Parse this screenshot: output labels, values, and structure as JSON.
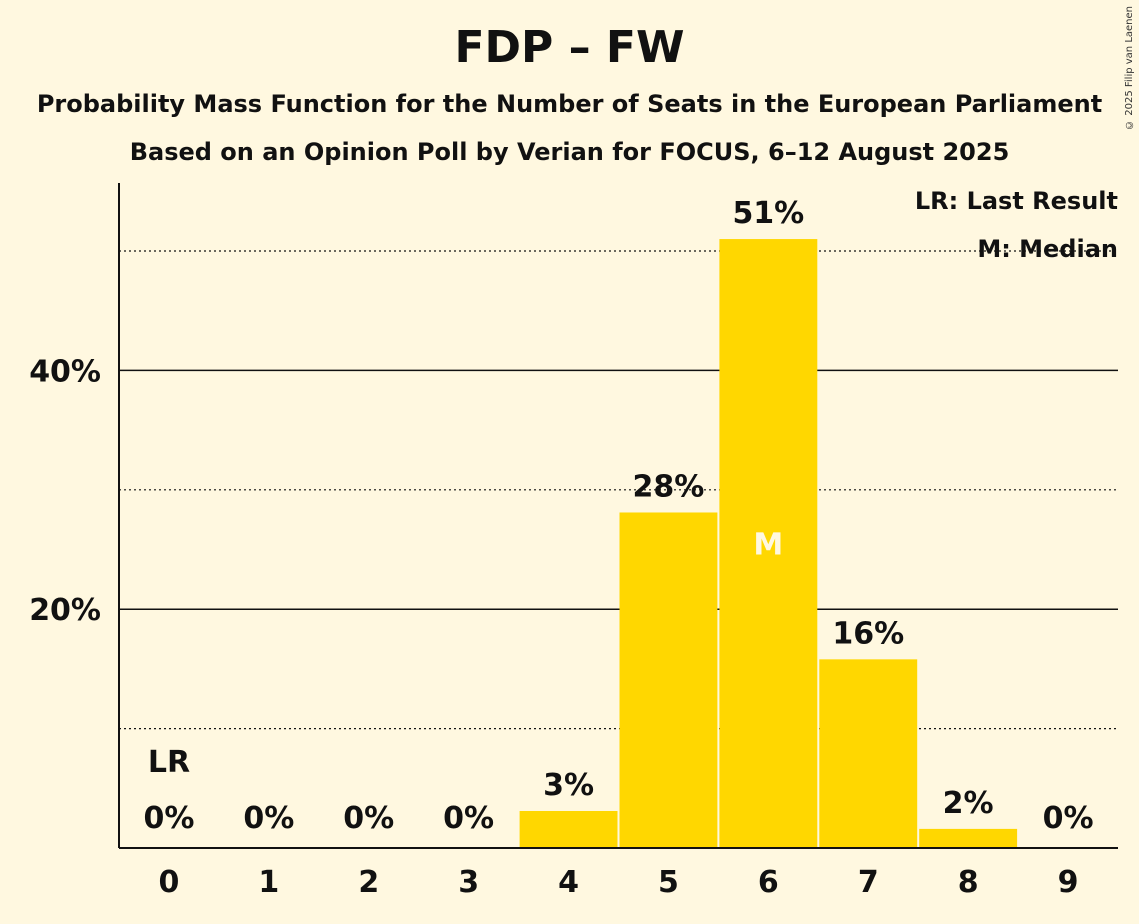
{
  "chart_data": {
    "type": "bar",
    "title": "FDP – FW",
    "subtitle": "Probability Mass Function for the Number of Seats in the European Parliament",
    "subtitle2": "Based on an Opinion Poll by Verian for FOCUS, 6–12 August 2025",
    "categories": [
      "0",
      "1",
      "2",
      "3",
      "4",
      "5",
      "6",
      "7",
      "8",
      "9"
    ],
    "values": [
      0,
      0,
      0,
      0,
      3.1,
      28.1,
      51,
      15.8,
      1.6,
      0
    ],
    "value_labels": [
      "0%",
      "0%",
      "0%",
      "0%",
      "3%",
      "28%",
      "51%",
      "16%",
      "2%",
      "0%"
    ],
    "y_ticks": [
      20,
      40
    ],
    "y_tick_labels": [
      "20%",
      "40%"
    ],
    "minor_gridlines": [
      10,
      30,
      50
    ],
    "ylim": [
      0,
      55.7
    ],
    "last_result_index": 0,
    "last_result_label": "LR",
    "median_index": 6,
    "median_label": "M",
    "legend": [
      "LR: Last Result",
      "M: Median"
    ],
    "bar_color": "#FFD700",
    "background": "#FFF8E0"
  },
  "copyright": "© 2025 Filip van Laenen"
}
